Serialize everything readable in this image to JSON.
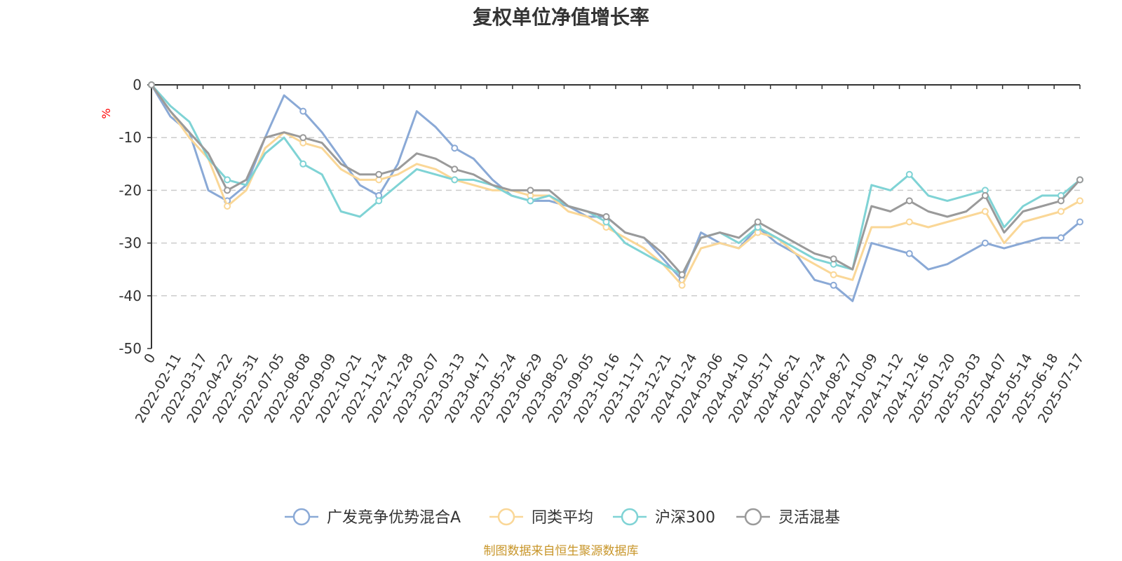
{
  "chart_data": {
    "type": "line",
    "title": "复权单位净值增长率",
    "ylabel": "%",
    "ylim": [
      -50,
      0
    ],
    "yticks": [
      0,
      -10,
      -20,
      -30,
      -40,
      -50
    ],
    "grid": true,
    "legend_position": "bottom",
    "source": "制图数据来自恒生聚源数据库",
    "colors": {
      "axis": "#333333",
      "grid": "#cccccc",
      "unit": "#ff0000",
      "source": "#c8962a"
    },
    "x_tick_labels": [
      "0",
      "2022-02-11",
      "2022-03-17",
      "2022-04-22",
      "2022-05-31",
      "2022-07-05",
      "2022-08-08",
      "2022-09-09",
      "2022-10-21",
      "2022-11-24",
      "2022-12-28",
      "2023-02-07",
      "2023-03-13",
      "2023-04-17",
      "2023-05-24",
      "2023-06-29",
      "2023-08-02",
      "2023-09-05",
      "2023-10-16",
      "2023-11-17",
      "2023-12-21",
      "2024-01-24",
      "2024-03-06",
      "2024-04-10",
      "2024-05-17",
      "2024-06-21",
      "2024-07-24",
      "2024-08-27",
      "2024-10-09",
      "2024-11-12",
      "2024-12-16",
      "2025-01-20",
      "2025-03-03",
      "2025-04-07",
      "2025-05-14",
      "2025-06-18",
      "2025-07-17"
    ],
    "series": [
      {
        "name": "广发竞争优势混合A",
        "color": "#8aa9d6",
        "values": [
          0,
          -6,
          -9,
          -20,
          -22,
          -19,
          -10,
          -2,
          -5,
          -9,
          -14,
          -19,
          -21,
          -15,
          -5,
          -8,
          -12,
          -14,
          -18,
          -21,
          -22,
          -22,
          -23,
          -25,
          -25,
          -28,
          -29,
          -33,
          -37,
          -28,
          -30,
          -31,
          -27,
          -30,
          -32,
          -37,
          -38,
          -41,
          -30,
          -31,
          -32,
          -35,
          -34,
          -32,
          -30,
          -31,
          -30,
          -29,
          -29,
          -26
        ]
      },
      {
        "name": "同类平均",
        "color": "#fad797",
        "values": [
          0,
          -5,
          -10,
          -14,
          -23,
          -20,
          -12,
          -9,
          -11,
          -12,
          -16,
          -18,
          -18,
          -17,
          -15,
          -16,
          -18,
          -19,
          -20,
          -20,
          -21,
          -21,
          -24,
          -25,
          -27,
          -29,
          -31,
          -34,
          -38,
          -31,
          -30,
          -31,
          -28,
          -29,
          -32,
          -34,
          -36,
          -37,
          -27,
          -27,
          -26,
          -27,
          -26,
          -25,
          -24,
          -30,
          -26,
          -25,
          -24,
          -22
        ]
      },
      {
        "name": "沪深300",
        "color": "#7fd3d5",
        "values": [
          0,
          -4,
          -7,
          -14,
          -18,
          -19,
          -13,
          -10,
          -15,
          -17,
          -24,
          -25,
          -22,
          -19,
          -16,
          -17,
          -18,
          -18,
          -19,
          -21,
          -22,
          -21,
          -23,
          -24,
          -26,
          -30,
          -32,
          -34,
          -36,
          -29,
          -28,
          -30,
          -27,
          -29,
          -31,
          -33,
          -34,
          -35,
          -19,
          -20,
          -17,
          -21,
          -22,
          -21,
          -20,
          -27,
          -23,
          -21,
          -21,
          -18
        ]
      },
      {
        "name": "灵活混基",
        "color": "#9a9a9a",
        "values": [
          0,
          -5,
          -9,
          -13,
          -20,
          -18,
          -10,
          -9,
          -10,
          -11,
          -15,
          -17,
          -17,
          -16,
          -13,
          -14,
          -16,
          -17,
          -19,
          -20,
          -20,
          -20,
          -23,
          -24,
          -25,
          -28,
          -29,
          -32,
          -36,
          -29,
          -28,
          -29,
          -26,
          -28,
          -30,
          -32,
          -33,
          -35,
          -23,
          -24,
          -22,
          -24,
          -25,
          -24,
          -21,
          -28,
          -24,
          -23,
          -22,
          -18
        ]
      }
    ]
  }
}
